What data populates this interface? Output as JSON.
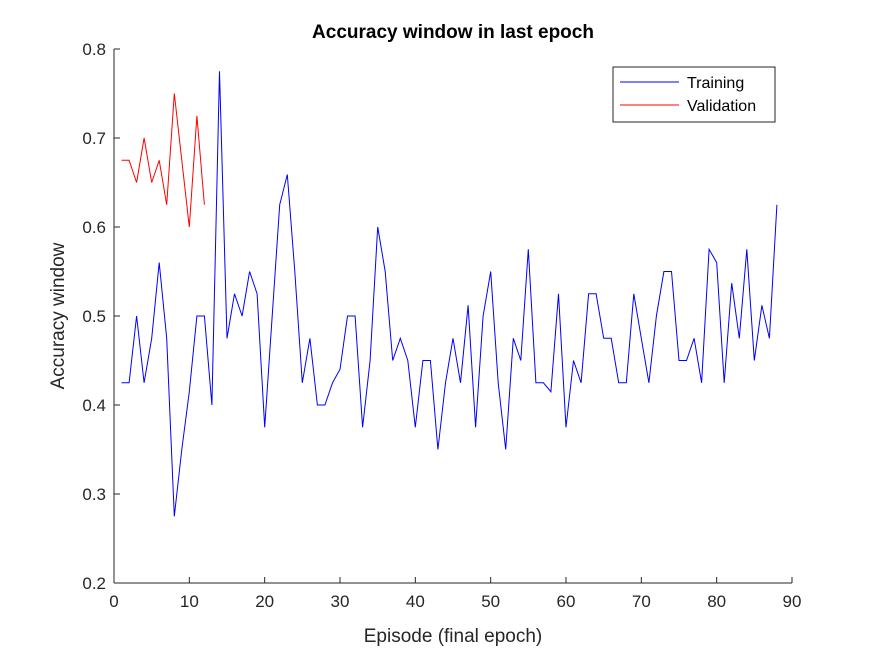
{
  "chart_data": {
    "type": "line",
    "title": "Accuracy window in last epoch",
    "xlabel": "Episode (final epoch)",
    "ylabel": "Accuracy window",
    "xlim": [
      0,
      90
    ],
    "ylim": [
      0.2,
      0.8
    ],
    "xticks": [
      0,
      10,
      20,
      30,
      40,
      50,
      60,
      70,
      80,
      90
    ],
    "yticks": [
      0.2,
      0.3,
      0.4,
      0.5,
      0.6,
      0.7,
      0.8
    ],
    "xtick_labels": [
      "0",
      "10",
      "20",
      "30",
      "40",
      "50",
      "60",
      "70",
      "80",
      "90"
    ],
    "ytick_labels": [
      "0.2",
      "0.3",
      "0.4",
      "0.5",
      "0.6",
      "0.7",
      "0.8"
    ],
    "grid": false,
    "legend_position": "top-right",
    "series": [
      {
        "name": "Training",
        "color": "#0000ff",
        "x": [
          1,
          2,
          3,
          4,
          5,
          6,
          7,
          8,
          9,
          10,
          11,
          12,
          13,
          14,
          15,
          16,
          17,
          18,
          19,
          20,
          21,
          22,
          23,
          24,
          25,
          26,
          27,
          28,
          29,
          30,
          31,
          32,
          33,
          34,
          35,
          36,
          37,
          38,
          39,
          40,
          41,
          42,
          43,
          44,
          45,
          46,
          47,
          48,
          49,
          50,
          51,
          52,
          53,
          54,
          55,
          56,
          57,
          58,
          59,
          60,
          61,
          62,
          63,
          64,
          65,
          66,
          67,
          68,
          69,
          70,
          71,
          72,
          73,
          74,
          75,
          76,
          77,
          78,
          79,
          80,
          81,
          82,
          83,
          84,
          85,
          86,
          87,
          88
        ],
        "y": [
          0.425,
          0.425,
          0.5,
          0.425,
          0.475,
          0.56,
          0.475,
          0.275,
          0.35,
          0.415,
          0.5,
          0.5,
          0.4,
          0.775,
          0.475,
          0.525,
          0.5,
          0.55,
          0.525,
          0.375,
          0.5,
          0.625,
          0.659,
          0.55,
          0.425,
          0.475,
          0.4,
          0.4,
          0.425,
          0.44,
          0.5,
          0.5,
          0.375,
          0.45,
          0.6,
          0.55,
          0.45,
          0.475,
          0.45,
          0.375,
          0.45,
          0.45,
          0.35,
          0.425,
          0.475,
          0.425,
          0.512,
          0.375,
          0.5,
          0.55,
          0.425,
          0.35,
          0.475,
          0.45,
          0.575,
          0.425,
          0.425,
          0.415,
          0.525,
          0.375,
          0.45,
          0.425,
          0.525,
          0.525,
          0.475,
          0.475,
          0.425,
          0.425,
          0.525,
          0.475,
          0.425,
          0.5,
          0.55,
          0.55,
          0.45,
          0.45,
          0.475,
          0.425,
          0.575,
          0.56,
          0.425,
          0.537,
          0.475,
          0.575,
          0.45,
          0.512,
          0.475,
          0.625
        ]
      },
      {
        "name": "Validation",
        "color": "#ff0000",
        "x": [
          1,
          2,
          3,
          4,
          5,
          6,
          7,
          8,
          9,
          10,
          11,
          12
        ],
        "y": [
          0.675,
          0.675,
          0.65,
          0.7,
          0.65,
          0.675,
          0.625,
          0.75,
          0.675,
          0.6,
          0.725,
          0.625
        ]
      }
    ]
  }
}
